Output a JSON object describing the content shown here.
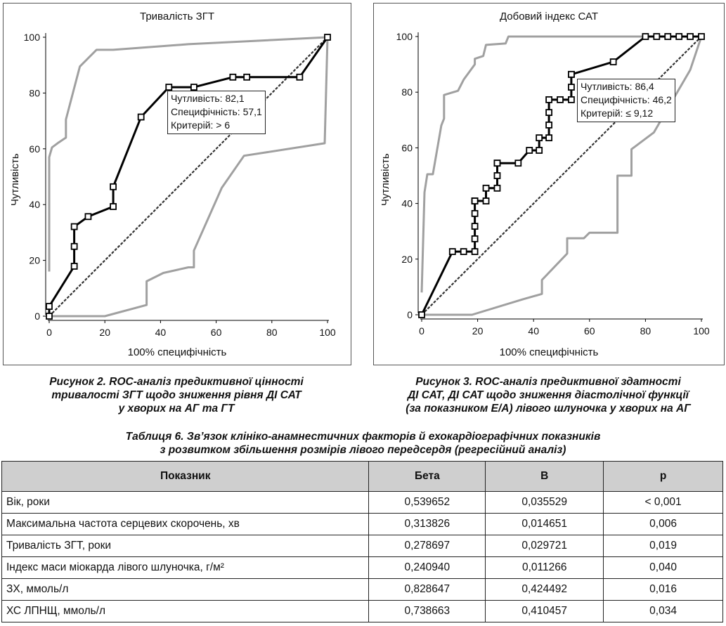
{
  "figure2": {
    "chart_data": {
      "type": "line",
      "title": "Тривалість ЗГТ",
      "xlabel": "100% специфічність",
      "ylabel": "Чутливість",
      "xlim": [
        0,
        100
      ],
      "ylim": [
        0,
        100
      ],
      "x_ticks": [
        "0",
        "20",
        "40",
        "60",
        "80",
        "100"
      ],
      "y_ticks": [
        "0",
        "20",
        "40",
        "60",
        "80",
        "100"
      ],
      "series": [
        {
          "color": "#000000",
          "markers": true,
          "x": [
            0,
            0,
            9,
            9,
            9,
            14,
            23,
            23,
            33,
            43,
            52,
            66,
            71,
            90,
            100
          ],
          "y": [
            0,
            3.5,
            17.9,
            25,
            32.1,
            35.7,
            39.3,
            46.4,
            71.4,
            82.1,
            82.1,
            85.7,
            85.7,
            85.7,
            100
          ]
        },
        {
          "color": "#a0a0a0",
          "markers": false,
          "x": [
            0,
            0,
            1,
            3,
            6,
            6,
            11,
            17,
            23,
            50,
            100,
            100
          ],
          "y": [
            16,
            57,
            60.5,
            62,
            64,
            70.5,
            89.5,
            95.5,
            95.5,
            97.5,
            100,
            100
          ]
        },
        {
          "color": "#a0a0a0",
          "markers": false,
          "x": [
            0,
            20,
            35,
            35,
            41,
            50,
            52,
            52,
            62,
            70,
            99,
            100
          ],
          "y": [
            0,
            0,
            4,
            12.5,
            15.5,
            17.5,
            17.5,
            23.5,
            46,
            57.5,
            62,
            100
          ]
        },
        {
          "color": "#333333",
          "markers": false,
          "dashed": true,
          "x": [
            0,
            100
          ],
          "y": [
            0,
            100
          ]
        }
      ],
      "annotation": [
        "Чутливість: 82,1",
        "Специфічність: 57,1",
        "Критерій: > 6"
      ]
    },
    "caption": [
      "Рисунок 2.  ROC-аналіз предиктивної цінності",
      "тривалості ЗГТ щодо зниження рівня ДІ САТ",
      "у хворих на АГ та ГТ"
    ]
  },
  "figure3": {
    "chart_data": {
      "type": "line",
      "title": "Добовий індекс САТ",
      "xlabel": "100% специфічність",
      "ylabel": "Чутливість",
      "xlim": [
        0,
        100
      ],
      "ylim": [
        0,
        100
      ],
      "x_ticks": [
        "0",
        "20",
        "40",
        "60",
        "80",
        "100"
      ],
      "y_ticks": [
        "0",
        "20",
        "40",
        "60",
        "80",
        "100"
      ],
      "series": [
        {
          "color": "#000000",
          "markers": true,
          "x": [
            0,
            11,
            15,
            19,
            19,
            19,
            19,
            19,
            19,
            19,
            23,
            23,
            27,
            27,
            27,
            27,
            34.5,
            38.5,
            42,
            42,
            45.5,
            45.5,
            45.5,
            45.5,
            49.5,
            53.5,
            53.5,
            53.5,
            53.5,
            68.5,
            80,
            84,
            88,
            92,
            96,
            100
          ],
          "y": [
            0,
            22.7,
            22.7,
            22.7,
            27.3,
            31.8,
            36.4,
            40.9,
            40.9,
            40.9,
            40.9,
            45.5,
            45.5,
            50,
            54.5,
            54.5,
            54.5,
            59.1,
            59.1,
            63.6,
            63.6,
            68.2,
            72.7,
            77.3,
            77.3,
            77.3,
            81.8,
            86.4,
            86.4,
            90.9,
            100,
            100,
            100,
            100,
            100,
            100
          ]
        },
        {
          "color": "#a0a0a0",
          "markers": false,
          "x": [
            0,
            1,
            2,
            4,
            7,
            8,
            8,
            13,
            15,
            19,
            19,
            22,
            23,
            30,
            31,
            100,
            100
          ],
          "y": [
            8,
            44,
            50.5,
            50.5,
            68,
            70.5,
            79,
            80.5,
            84.5,
            90,
            92,
            93,
            97,
            97.5,
            100,
            100,
            100
          ]
        },
        {
          "color": "#a0a0a0",
          "markers": false,
          "x": [
            0,
            18,
            36,
            43,
            43,
            52,
            52,
            58,
            60,
            70,
            70,
            75,
            75,
            83,
            96,
            100
          ],
          "y": [
            0,
            0,
            5.5,
            7.5,
            12.5,
            22,
            27.5,
            27.5,
            29.5,
            29.5,
            50,
            50,
            59.5,
            65.5,
            88,
            100
          ]
        },
        {
          "color": "#333333",
          "markers": false,
          "dashed": true,
          "x": [
            0,
            100
          ],
          "y": [
            0,
            100
          ]
        }
      ],
      "annotation": [
        "Чутливість: 86,4",
        "Специфічність: 46,2",
        "Критерій: ≤ 9,12"
      ]
    },
    "caption": [
      "Рисунок 3.  ROC-аналіз предиктивної здатності",
      "ДІ САТ, ДІ САТ щодо зниження діастолічної функції",
      "(за показником Е/А) лівого шлуночка у хворих на АГ"
    ]
  },
  "table": {
    "caption": [
      "Таблиця 6. Зв’язок клініко-анамнестичних факторів й ехокардіографічних показників",
      "з розвитком збільшення розмірів лівого передсердя (регресійний аналіз)"
    ],
    "headers": [
      "Показник",
      "Бета",
      "B",
      "p"
    ],
    "rows": [
      [
        "Вік, роки",
        "0,539652",
        "0,035529",
        "< 0,001"
      ],
      [
        "Максимальна частота серцевих скорочень, хв",
        "0,313826",
        "0,014651",
        "0,006"
      ],
      [
        "Тривалість ЗГТ, роки",
        "0,278697",
        "0,029721",
        "0,019"
      ],
      [
        "Індекс маси міокарда лівого шлуночка, г/м²",
        "0,240940",
        "0,011266",
        "0,040"
      ],
      [
        "ЗХ, ммоль/л",
        "0,828647",
        "0,424492",
        "0,016"
      ],
      [
        "ХС ЛПНЩ, ммоль/л",
        "0,738663",
        "0,410457",
        "0,034"
      ]
    ]
  }
}
